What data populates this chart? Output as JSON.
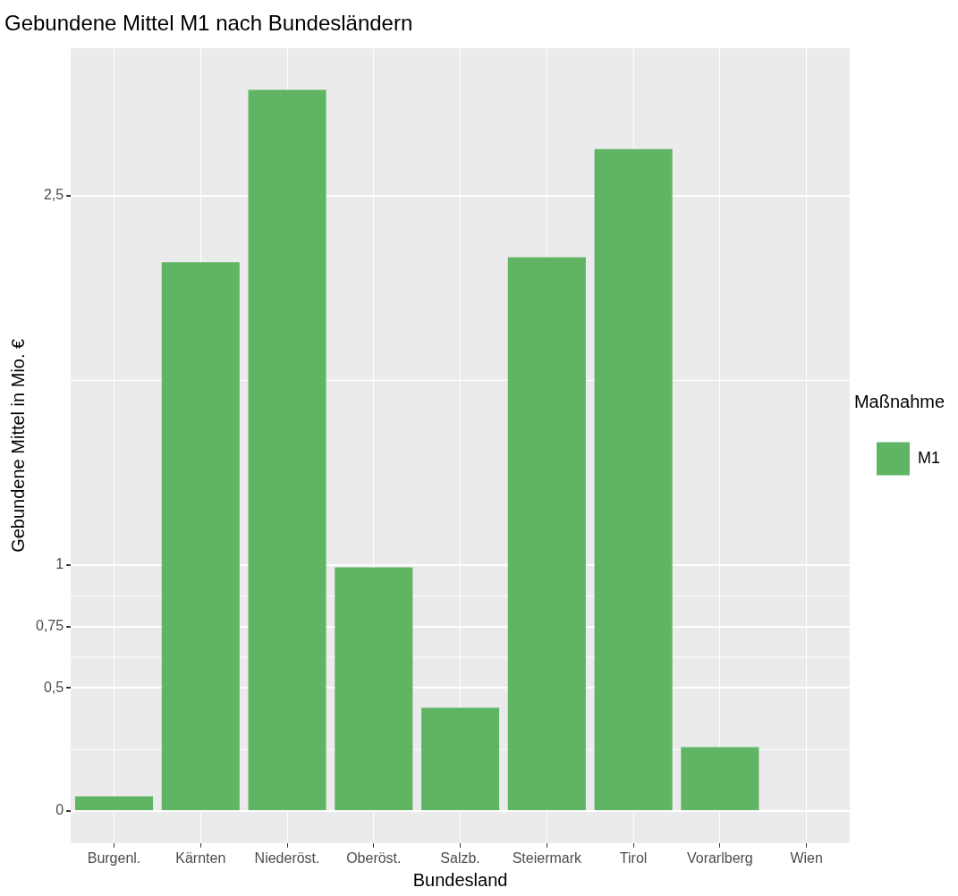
{
  "chart_data": {
    "type": "bar",
    "title": "Gebundene Mittel M1 nach Bundesländern",
    "xlabel": "Bundesland",
    "ylabel": "Gebundene Mittel in Mio. €",
    "legend_title": "Maßnahme",
    "categories": [
      "Burgenl.",
      "Kärnten",
      "Niederöst.",
      "Oberöst.",
      "Salzb.",
      "Steiermark",
      "Tirol",
      "Vorarlberg",
      "Wien"
    ],
    "series": [
      {
        "name": "M1",
        "color": "#5fb563",
        "values": [
          0.06,
          2.23,
          2.93,
          0.99,
          0.42,
          2.25,
          2.69,
          0.26,
          0
        ]
      }
    ],
    "ylim": [
      -0.13,
      3.1
    ],
    "yticks": [
      0,
      {
        "value": 0.5,
        "label": "0,5"
      },
      {
        "value": 0.75,
        "label": "0,75"
      },
      1,
      {
        "value": 2.5,
        "label": "2,5"
      }
    ],
    "grid": true,
    "legend": "right"
  }
}
